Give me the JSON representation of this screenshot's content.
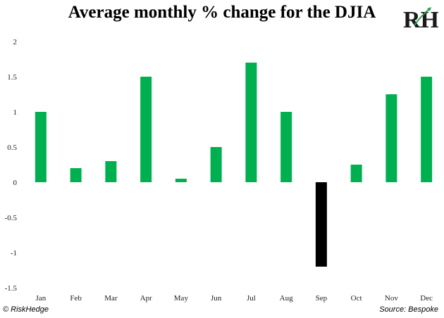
{
  "title": "Average monthly % change for the DJIA",
  "logo_text": "RH",
  "footer": {
    "left": "© RiskHedge",
    "right": "Source: Bespoke"
  },
  "colors": {
    "positive": "#00B050",
    "negative": "#000000",
    "logo": "#1a1a1a",
    "logo_accent": "#2e9e4a"
  },
  "chart_data": {
    "type": "bar",
    "title": "Average monthly % change for the DJIA",
    "xlabel": "",
    "ylabel": "",
    "categories": [
      "Jan",
      "Feb",
      "Mar",
      "Apr",
      "May",
      "Jun",
      "Jul",
      "Aug",
      "Sep",
      "Oct",
      "Nov",
      "Dec"
    ],
    "values": [
      1.0,
      0.2,
      0.3,
      1.5,
      0.05,
      0.5,
      1.7,
      1.0,
      -1.2,
      0.25,
      1.25,
      1.5
    ],
    "ylim": [
      -1.5,
      2
    ],
    "yticks": [
      "2",
      "1.5",
      "1",
      "0.5",
      "0",
      "-0.5",
      "-1",
      "-1.5"
    ],
    "ytick_values": [
      2,
      1.5,
      1,
      0.5,
      0,
      -0.5,
      -1,
      -1.5
    ],
    "grid": false,
    "legend": "none"
  }
}
